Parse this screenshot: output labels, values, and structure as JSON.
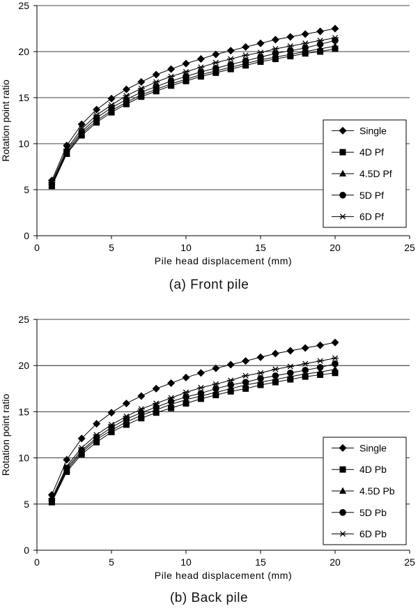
{
  "chart_data": [
    {
      "type": "line",
      "caption": "(a)  Front pile",
      "xlabel": "Pile head displacement (mm)",
      "ylabel": "Rotation point ratio",
      "xlim": [
        0,
        25
      ],
      "ylim": [
        0,
        25
      ],
      "xticks": [
        0,
        5,
        10,
        15,
        20,
        25
      ],
      "yticks": [
        0,
        5,
        10,
        15,
        20,
        25
      ],
      "grid": "horizontal",
      "legend_position": "right",
      "x": [
        1,
        2,
        3,
        4,
        5,
        6,
        7,
        8,
        9,
        10,
        11,
        12,
        13,
        14,
        15,
        16,
        17,
        18,
        19,
        20
      ],
      "series": [
        {
          "name": "Single",
          "marker": "diamond",
          "values": [
            6.0,
            9.8,
            12.1,
            13.7,
            14.9,
            15.9,
            16.7,
            17.5,
            18.1,
            18.7,
            19.2,
            19.7,
            20.1,
            20.5,
            20.9,
            21.3,
            21.6,
            21.9,
            22.2,
            22.5
          ]
        },
        {
          "name": "4D Pf",
          "marker": "square",
          "values": [
            5.4,
            8.9,
            10.9,
            12.3,
            13.4,
            14.3,
            15.1,
            15.7,
            16.3,
            16.8,
            17.3,
            17.7,
            18.1,
            18.5,
            18.9,
            19.2,
            19.5,
            19.8,
            20.0,
            20.3
          ]
        },
        {
          "name": "4.5D Pf",
          "marker": "triangle",
          "values": [
            5.5,
            9.0,
            11.1,
            12.5,
            13.6,
            14.5,
            15.3,
            15.9,
            16.5,
            17.0,
            17.5,
            17.9,
            18.3,
            18.7,
            19.1,
            19.4,
            19.7,
            20.0,
            20.3,
            20.6
          ]
        },
        {
          "name": "5D Pf",
          "marker": "circle",
          "values": [
            5.6,
            9.2,
            11.3,
            12.8,
            13.9,
            14.8,
            15.6,
            16.2,
            16.8,
            17.3,
            17.8,
            18.2,
            18.6,
            19.0,
            19.4,
            19.8,
            20.1,
            20.4,
            20.8,
            21.2
          ]
        },
        {
          "name": "6D Pf",
          "marker": "star",
          "values": [
            5.8,
            9.4,
            11.6,
            13.1,
            14.2,
            15.2,
            16.0,
            16.7,
            17.3,
            17.8,
            18.3,
            18.8,
            19.2,
            19.6,
            19.9,
            20.3,
            20.6,
            20.9,
            21.2,
            21.5
          ]
        }
      ]
    },
    {
      "type": "line",
      "caption": "(b)  Back pile",
      "xlabel": "Pile head displacement (mm)",
      "ylabel": "Rotation point ratio",
      "xlim": [
        0,
        25
      ],
      "ylim": [
        0,
        25
      ],
      "xticks": [
        0,
        5,
        10,
        15,
        20,
        25
      ],
      "yticks": [
        0,
        5,
        10,
        15,
        20,
        25
      ],
      "grid": "horizontal",
      "legend_position": "right",
      "x": [
        1,
        2,
        3,
        4,
        5,
        6,
        7,
        8,
        9,
        10,
        11,
        12,
        13,
        14,
        15,
        16,
        17,
        18,
        19,
        20
      ],
      "series": [
        {
          "name": "Single",
          "marker": "diamond",
          "values": [
            6.0,
            9.8,
            12.1,
            13.7,
            14.9,
            15.9,
            16.7,
            17.5,
            18.1,
            18.7,
            19.2,
            19.7,
            20.1,
            20.5,
            20.9,
            21.3,
            21.6,
            21.9,
            22.2,
            22.5
          ]
        },
        {
          "name": "4D Pb",
          "marker": "square",
          "values": [
            5.2,
            8.5,
            10.4,
            11.7,
            12.8,
            13.6,
            14.3,
            14.9,
            15.4,
            15.9,
            16.4,
            16.8,
            17.2,
            17.5,
            17.9,
            18.2,
            18.5,
            18.8,
            19.0,
            19.2
          ]
        },
        {
          "name": "4.5D Pb",
          "marker": "triangle",
          "values": [
            5.3,
            8.7,
            10.6,
            12.0,
            13.0,
            13.9,
            14.6,
            15.2,
            15.8,
            16.3,
            16.7,
            17.1,
            17.5,
            17.9,
            18.2,
            18.5,
            18.8,
            19.1,
            19.3,
            19.6
          ]
        },
        {
          "name": "5D Pb",
          "marker": "circle",
          "values": [
            5.4,
            8.9,
            10.8,
            12.2,
            13.3,
            14.2,
            14.9,
            15.5,
            16.1,
            16.6,
            17.0,
            17.5,
            17.9,
            18.2,
            18.6,
            18.9,
            19.2,
            19.5,
            19.8,
            20.2
          ]
        },
        {
          "name": "6D Pb",
          "marker": "star",
          "values": [
            5.6,
            9.1,
            11.1,
            12.5,
            13.6,
            14.5,
            15.3,
            15.9,
            16.5,
            17.1,
            17.6,
            18.0,
            18.4,
            18.9,
            19.2,
            19.6,
            19.9,
            20.2,
            20.5,
            20.8
          ]
        }
      ]
    }
  ]
}
